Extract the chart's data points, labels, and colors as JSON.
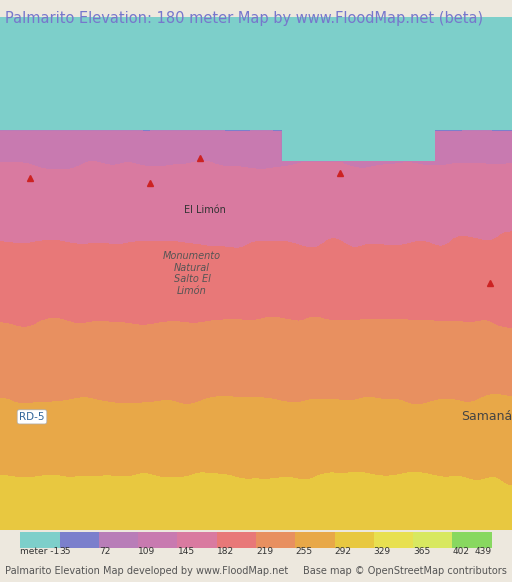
{
  "title": "Palmarito Elevation: 180 meter Map by www.FloodMap.net (beta)",
  "title_color": "#7777cc",
  "title_fontsize": 10.5,
  "bg_color": "#ede8de",
  "colorbar_labels": [
    "meter -1",
    "35",
    "72",
    "109",
    "145",
    "182",
    "219",
    "255",
    "292",
    "329",
    "365",
    "402",
    "439"
  ],
  "colorbar_colors": [
    "#7dcfca",
    "#7b7fcc",
    "#b87db8",
    "#c87ab0",
    "#d97aa0",
    "#e87878",
    "#e89060",
    "#e8a848",
    "#e8c840",
    "#e8e050",
    "#d8e860",
    "#88d860"
  ],
  "footer_left": "Palmarito Elevation Map developed by www.FloodMap.net",
  "footer_right": "Base map © OpenStreetMap contributors",
  "footer_color": "#555555",
  "footer_fontsize": 7,
  "map_image_placeholder": true,
  "map_colors": {
    "sea": "#6ec6c6",
    "low": "#9090d0",
    "mid_low": "#c080c0",
    "mid": "#e87878",
    "high": "#e8c840",
    "peak": "#88d860"
  }
}
